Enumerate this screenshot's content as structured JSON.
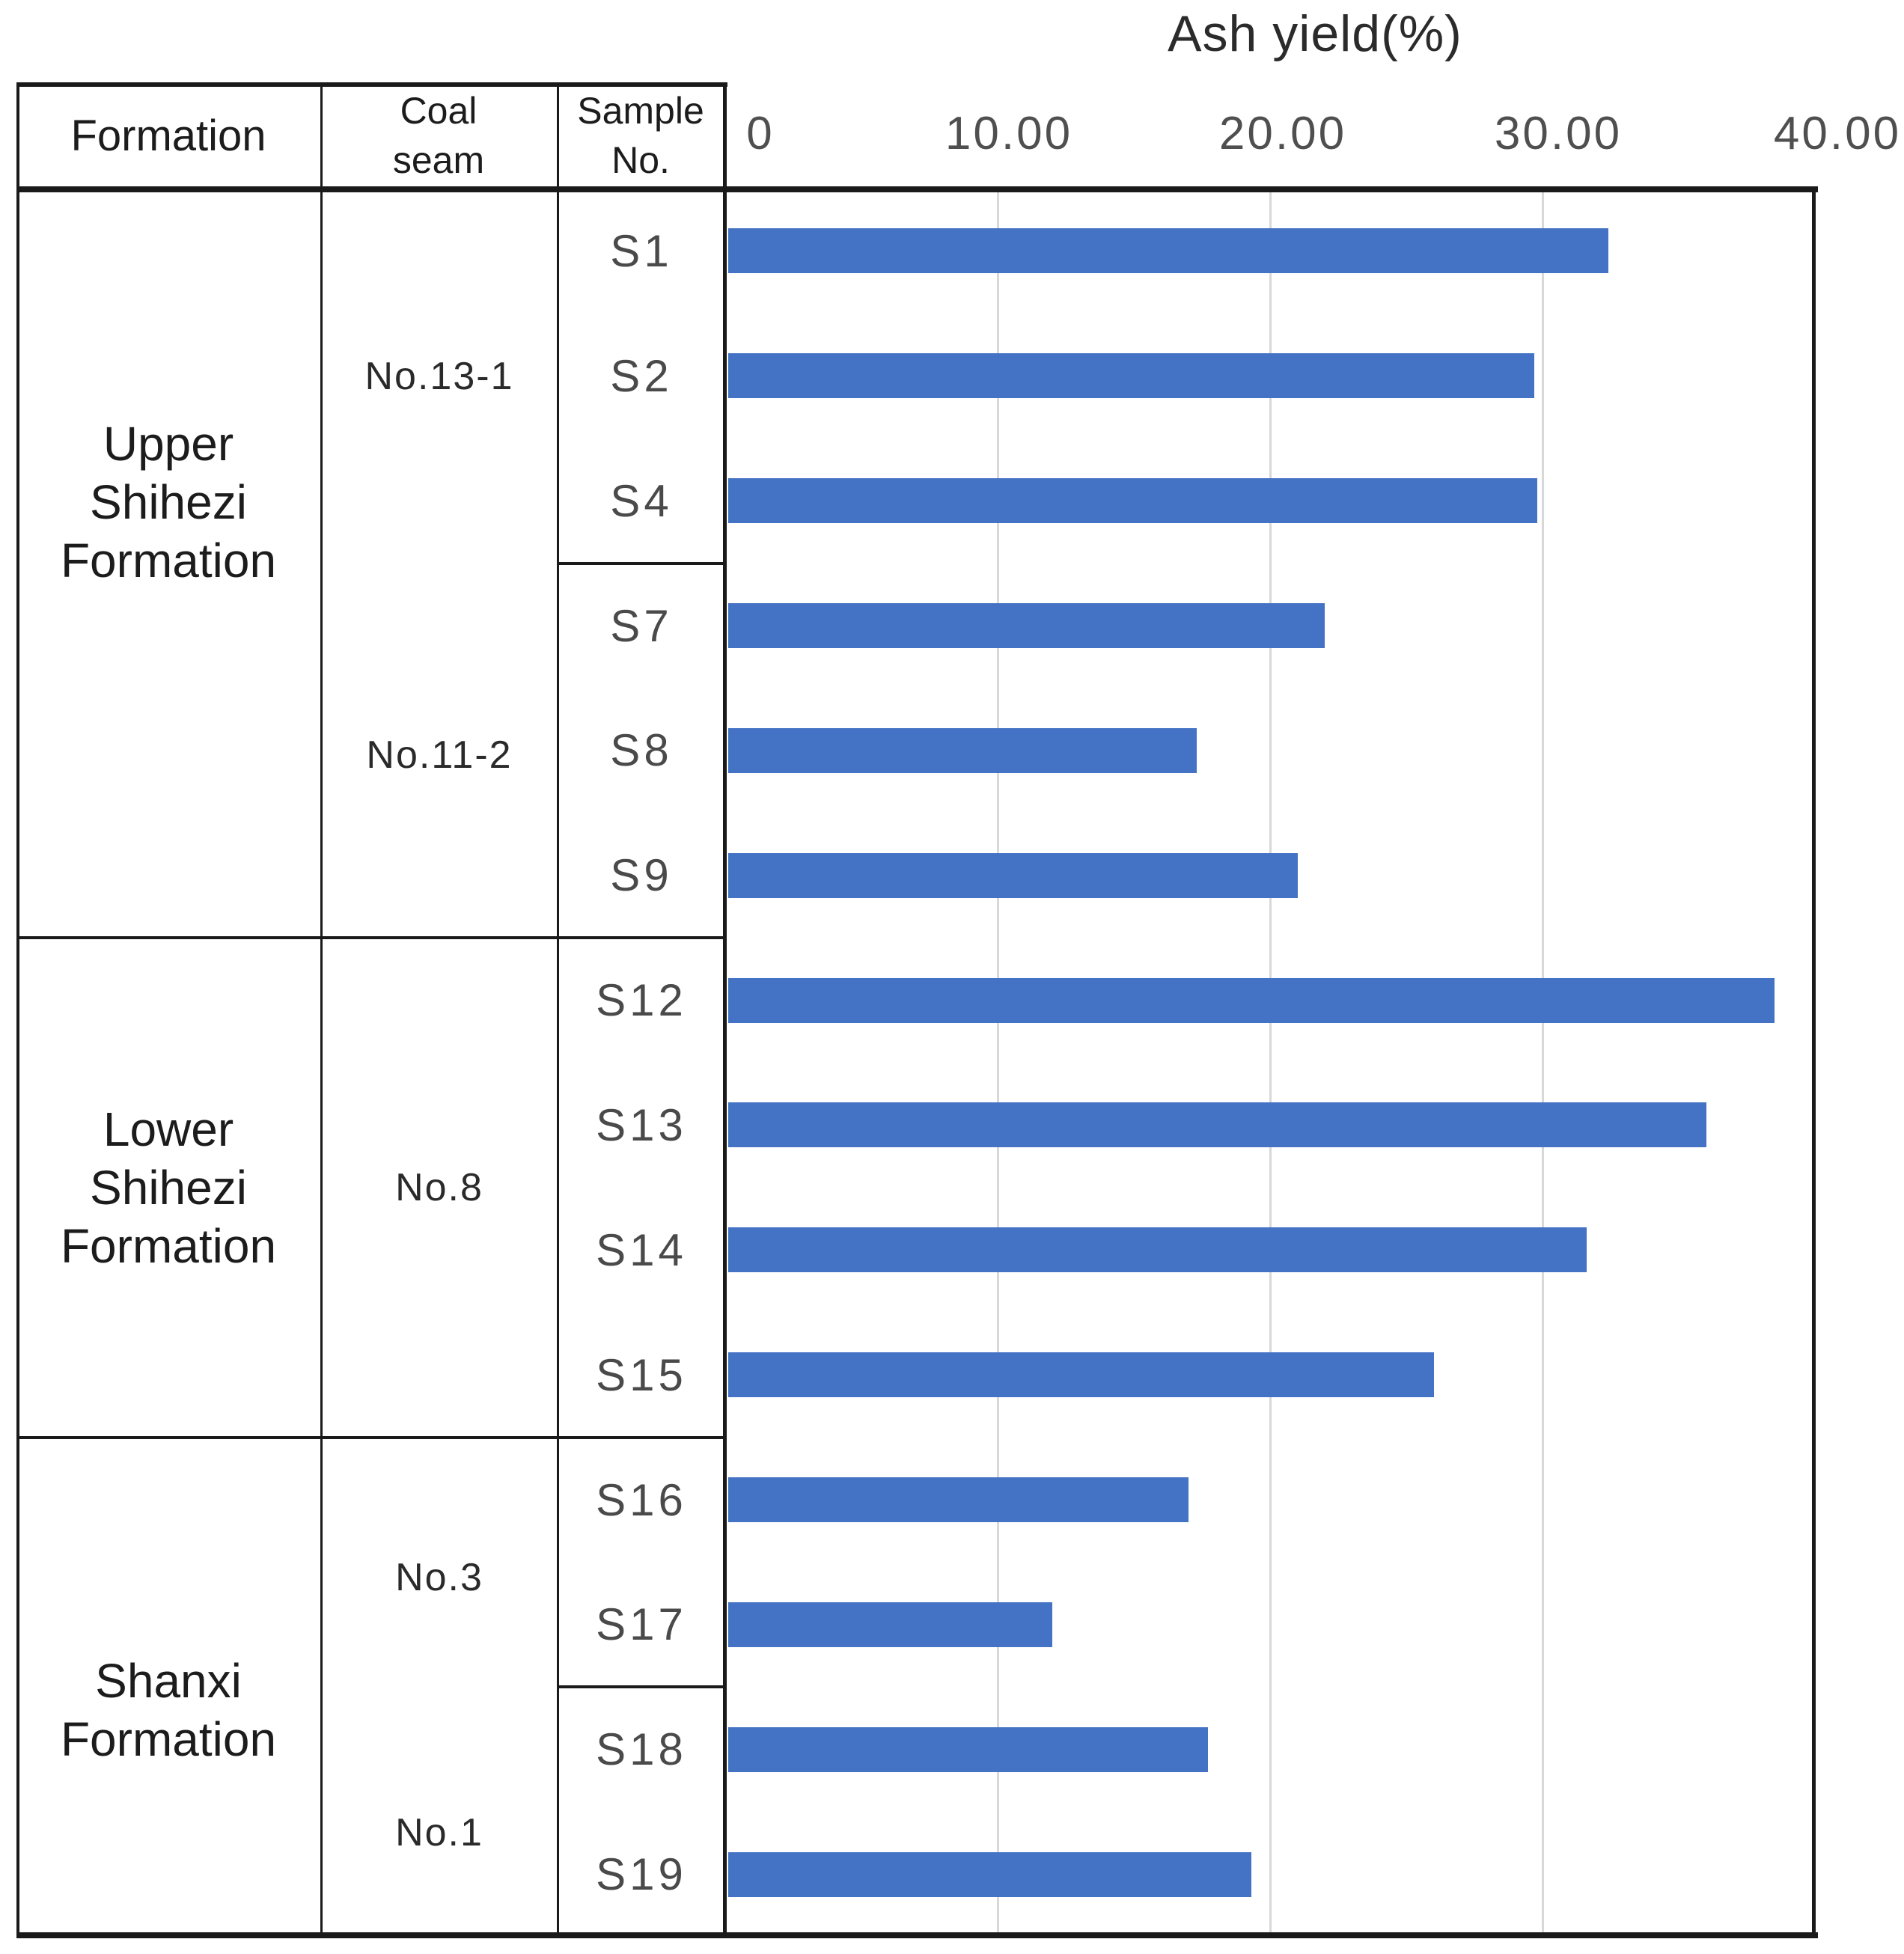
{
  "title": "Ash yield(%)",
  "table": {
    "headers": {
      "formation": "Formation",
      "coal_seam": [
        "Coal",
        "seam"
      ],
      "sample_no": [
        "Sample",
        "No."
      ]
    },
    "formations": [
      {
        "label": [
          "Upper",
          "Shihezi",
          "Formation"
        ],
        "rows": 6
      },
      {
        "label": [
          "Lower",
          "Shihezi",
          "Formation"
        ],
        "rows": 4
      },
      {
        "label": [
          "Shanxi",
          "Formation"
        ],
        "rows": 4
      }
    ],
    "coal_seams": [
      {
        "label": "No.13-1",
        "rows": 3
      },
      {
        "label": "No.11-2",
        "rows": 3
      },
      {
        "label": "No.8",
        "rows": 4
      },
      {
        "label": "No.3",
        "rows": 2
      },
      {
        "label": "No.1",
        "rows": 2
      }
    ]
  },
  "chart_data": {
    "type": "bar",
    "orientation": "horizontal",
    "title": "Ash yield(%)",
    "xlabel": "Ash yield(%)",
    "ylabel": "Sample No.",
    "xlim": [
      0,
      40
    ],
    "grid": true,
    "bar_color": "#4472C4",
    "gridline_color": "#D8D8D8",
    "x_ticks": [
      "0",
      "10.00",
      "20.00",
      "30.00",
      "40.00"
    ],
    "x_tick_values": [
      0,
      10,
      20,
      30,
      40
    ],
    "categories": [
      "S1",
      "S2",
      "S4",
      "S7",
      "S8",
      "S9",
      "S12",
      "S13",
      "S14",
      "S15",
      "S16",
      "S17",
      "S18",
      "S19"
    ],
    "values": [
      32.3,
      29.6,
      29.7,
      21.9,
      17.2,
      20.9,
      38.4,
      35.9,
      31.5,
      25.9,
      16.9,
      11.9,
      17.6,
      19.2
    ],
    "series": [
      {
        "name": "Ash yield (%)",
        "values": [
          32.3,
          29.6,
          29.7,
          21.9,
          17.2,
          20.9,
          38.4,
          35.9,
          31.5,
          25.9,
          16.9,
          11.9,
          17.6,
          19.2
        ]
      }
    ],
    "group_map": {
      "S1": {
        "formation": "Upper Shihezi Formation",
        "coal_seam": "No.13-1"
      },
      "S2": {
        "formation": "Upper Shihezi Formation",
        "coal_seam": "No.13-1"
      },
      "S4": {
        "formation": "Upper Shihezi Formation",
        "coal_seam": "No.13-1"
      },
      "S7": {
        "formation": "Upper Shihezi Formation",
        "coal_seam": "No.11-2"
      },
      "S8": {
        "formation": "Upper Shihezi Formation",
        "coal_seam": "No.11-2"
      },
      "S9": {
        "formation": "Upper Shihezi Formation",
        "coal_seam": "No.11-2"
      },
      "S12": {
        "formation": "Lower Shihezi Formation",
        "coal_seam": "No.8"
      },
      "S13": {
        "formation": "Lower Shihezi Formation",
        "coal_seam": "No.8"
      },
      "S14": {
        "formation": "Lower Shihezi Formation",
        "coal_seam": "No.8"
      },
      "S15": {
        "formation": "Lower Shihezi Formation",
        "coal_seam": "No.8"
      },
      "S16": {
        "formation": "Shanxi Formation",
        "coal_seam": "No.3"
      },
      "S17": {
        "formation": "Shanxi Formation",
        "coal_seam": "No.3"
      },
      "S18": {
        "formation": "Shanxi Formation",
        "coal_seam": "No.1"
      },
      "S19": {
        "formation": "Shanxi Formation",
        "coal_seam": "No.1"
      }
    }
  }
}
